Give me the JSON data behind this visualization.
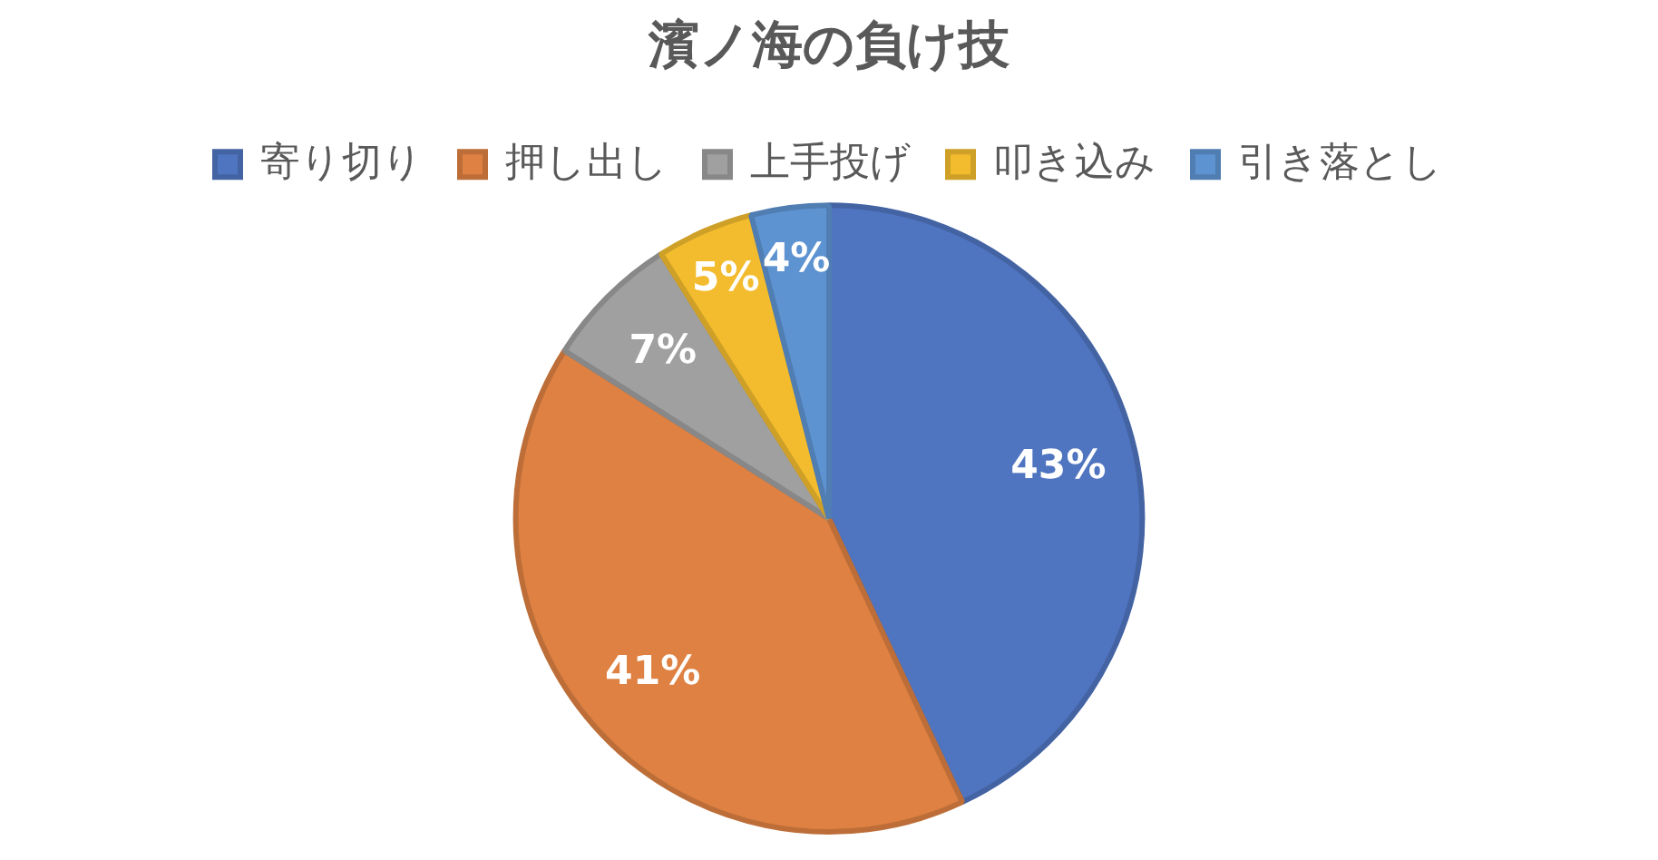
{
  "chart_data": {
    "type": "pie",
    "title": "濱ノ海の負け技",
    "categories": [
      "寄り切り",
      "押し出し",
      "上手投げ",
      "叩き込み",
      "引き落とし"
    ],
    "values": [
      43,
      41,
      7,
      5,
      4
    ],
    "colors": [
      "#4f74c0",
      "#de8142",
      "#a0a0a0",
      "#f3bc2e",
      "#5e93d1"
    ],
    "value_labels": [
      "43%",
      "41%",
      "7%",
      "5%",
      "4%"
    ],
    "legend": "top"
  }
}
